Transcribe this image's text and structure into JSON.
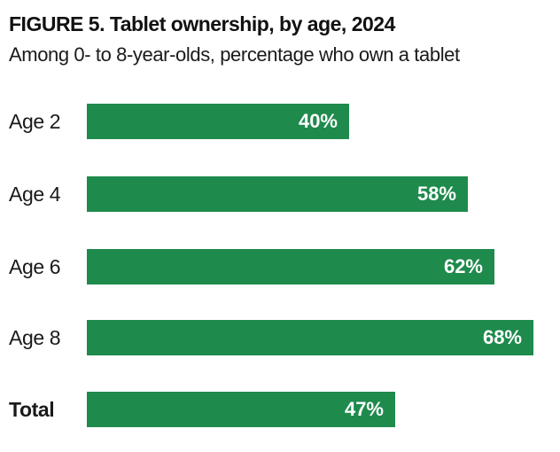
{
  "figure": {
    "title": "FIGURE 5. Tablet ownership, by age, 2024",
    "subtitle": "Among 0- to 8-year-olds, percentage who own a tablet"
  },
  "chart_data": {
    "type": "bar",
    "orientation": "horizontal",
    "title": "FIGURE 5. Tablet ownership, by age, 2024",
    "subtitle": "Among 0- to 8-year-olds, percentage who own a tablet",
    "xlabel": "",
    "ylabel": "",
    "unit": "%",
    "xlim": [
      0,
      85
    ],
    "grid": false,
    "legend": false,
    "value_labels_inside_bars": true,
    "categories": [
      "Age 2",
      "Age 4",
      "Age 6",
      "Age 8",
      "Total"
    ],
    "values": [
      40,
      58,
      62,
      68,
      47
    ],
    "rows": [
      {
        "label": "Age 2",
        "value": 40,
        "display": "40%",
        "bold_label": false
      },
      {
        "label": "Age 4",
        "value": 58,
        "display": "58%",
        "bold_label": false
      },
      {
        "label": "Age 6",
        "value": 62,
        "display": "62%",
        "bold_label": false
      },
      {
        "label": "Age 8",
        "value": 68,
        "display": "68%",
        "bold_label": false
      },
      {
        "label": "Total",
        "value": 47,
        "display": "47%",
        "bold_label": true
      }
    ],
    "colors": {
      "bar": "#1e8a4c",
      "value_label": "#ffffff",
      "category_label": "#1a1a1a",
      "title": "#111111",
      "subtitle": "#1a1a1a",
      "background": "#ffffff"
    }
  }
}
